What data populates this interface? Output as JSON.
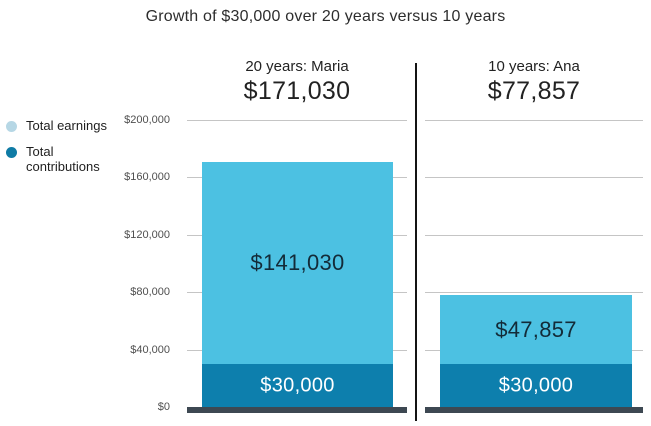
{
  "title": "Growth of $30,000 over 20 years versus 10 years",
  "legend": {
    "items": [
      {
        "label": "Total earnings",
        "color": "#b6d7e5"
      },
      {
        "label": "Total contributions",
        "color": "#0f7ba5"
      }
    ]
  },
  "panels": [
    {
      "heading": "20 years: Maria",
      "total_label": "$171,030"
    },
    {
      "heading": "10 years: Ana",
      "total_label": "$77,857"
    }
  ],
  "chart_data": {
    "type": "bar",
    "stacked": true,
    "title": "Growth of $30,000 over 20 years versus 10 years",
    "categories": [
      "20 years: Maria",
      "10 years: Ana"
    ],
    "totals": [
      171030,
      77857
    ],
    "total_labels": [
      "$171,030",
      "$77,857"
    ],
    "series": [
      {
        "name": "Total contributions",
        "values": [
          30000,
          30000
        ],
        "labels": [
          "$30,000",
          "$30,000"
        ],
        "color": "#0d7fad"
      },
      {
        "name": "Total earnings",
        "values": [
          141030,
          47857
        ],
        "labels": [
          "$141,030",
          "$47,857"
        ],
        "color": "#4cc1e2"
      }
    ],
    "xlabel": "",
    "ylabel": "",
    "ylim": [
      0,
      200000
    ],
    "ytick_values": [
      200000,
      160000,
      120000,
      80000,
      40000,
      0
    ],
    "yticks": [
      "$200,000",
      "$160,000",
      "$120,000",
      "$80,000",
      "$40,000",
      "$0"
    ],
    "grid": true,
    "legend_position": "left"
  },
  "colors": {
    "earnings_bar": "#4cc1e2",
    "contributions_bar": "#0d7fad",
    "legend_earnings_dot": "#b6d7e5",
    "legend_contributions_dot": "#0f7ba5",
    "baseline": "#3d4852",
    "gridline": "#c5c5c5",
    "divider": "#141414",
    "earnings_label_text": "#132b38",
    "contributions_label_text": "#ffffff"
  }
}
